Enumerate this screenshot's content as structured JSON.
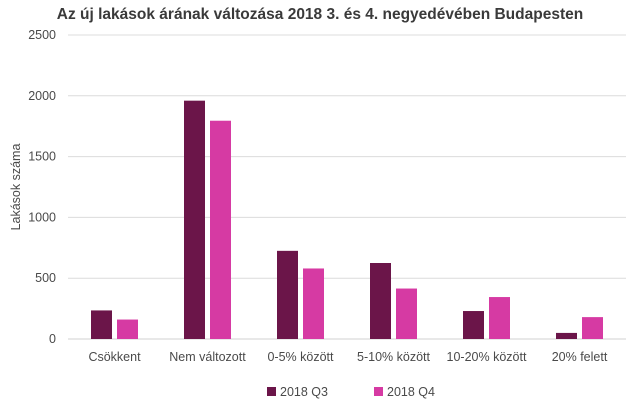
{
  "chart_data": {
    "type": "bar",
    "title": "Az új lakások árának változása 2018 3. és 4. negyedévében Budapesten",
    "xlabel": "",
    "ylabel": "Lakások száma",
    "ylim": [
      0,
      2500
    ],
    "yticks": [
      "0",
      "500",
      "1000",
      "1500",
      "2000",
      "2500"
    ],
    "ytick_values": [
      0,
      500,
      1000,
      1500,
      2000,
      2500
    ],
    "grid": true,
    "legend_position": "bottom",
    "categories": [
      "Csökkent",
      "Nem változott",
      "0-5% között",
      "5-10% között",
      "10-20% között",
      "20% felett"
    ],
    "series": [
      {
        "name": "2018 Q3",
        "color": "#6b1549",
        "values": [
          235,
          1960,
          725,
          625,
          230,
          50
        ]
      },
      {
        "name": "2018 Q4",
        "color": "#d63aa3",
        "values": [
          160,
          1795,
          580,
          415,
          345,
          180
        ]
      }
    ]
  }
}
